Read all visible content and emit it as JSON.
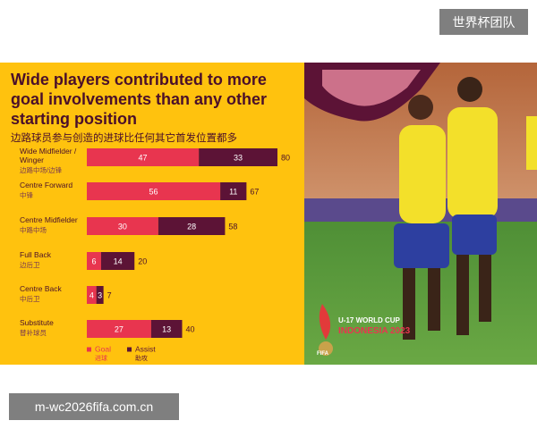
{
  "watermark_top": "世界杯团队",
  "watermark_bottom": "m-wc2026fifa.com.cn",
  "logo": {
    "line1": "U-17 WORLD CUP",
    "line2": "INDONESIA 2023",
    "badge": "FIFA"
  },
  "chart_data": {
    "type": "bar",
    "orientation": "horizontal",
    "stacked": true,
    "title": "Wide players contributed to more goal involvements than any other starting position",
    "subtitle": "边路球员参与创造的进球比任何其它首发位置都多",
    "categories": [
      "Wide Midfielder / Winger",
      "Centre Forward",
      "Centre Midfielder",
      "Full Back",
      "Centre Back",
      "Substitute"
    ],
    "categories_zh": [
      "边路中场/边锋",
      "中锋",
      "中路中场",
      "边后卫",
      "中后卫",
      "替补球员"
    ],
    "series": [
      {
        "name": "Goal",
        "name_zh": "进球",
        "color": "#e8354f",
        "values": [
          47,
          56,
          30,
          6,
          4,
          27
        ]
      },
      {
        "name": "Assist",
        "name_zh": "助攻",
        "color": "#5c1336",
        "values": [
          33,
          11,
          28,
          14,
          3,
          13
        ]
      }
    ],
    "totals": [
      80,
      67,
      58,
      20,
      7,
      40
    ]
  }
}
